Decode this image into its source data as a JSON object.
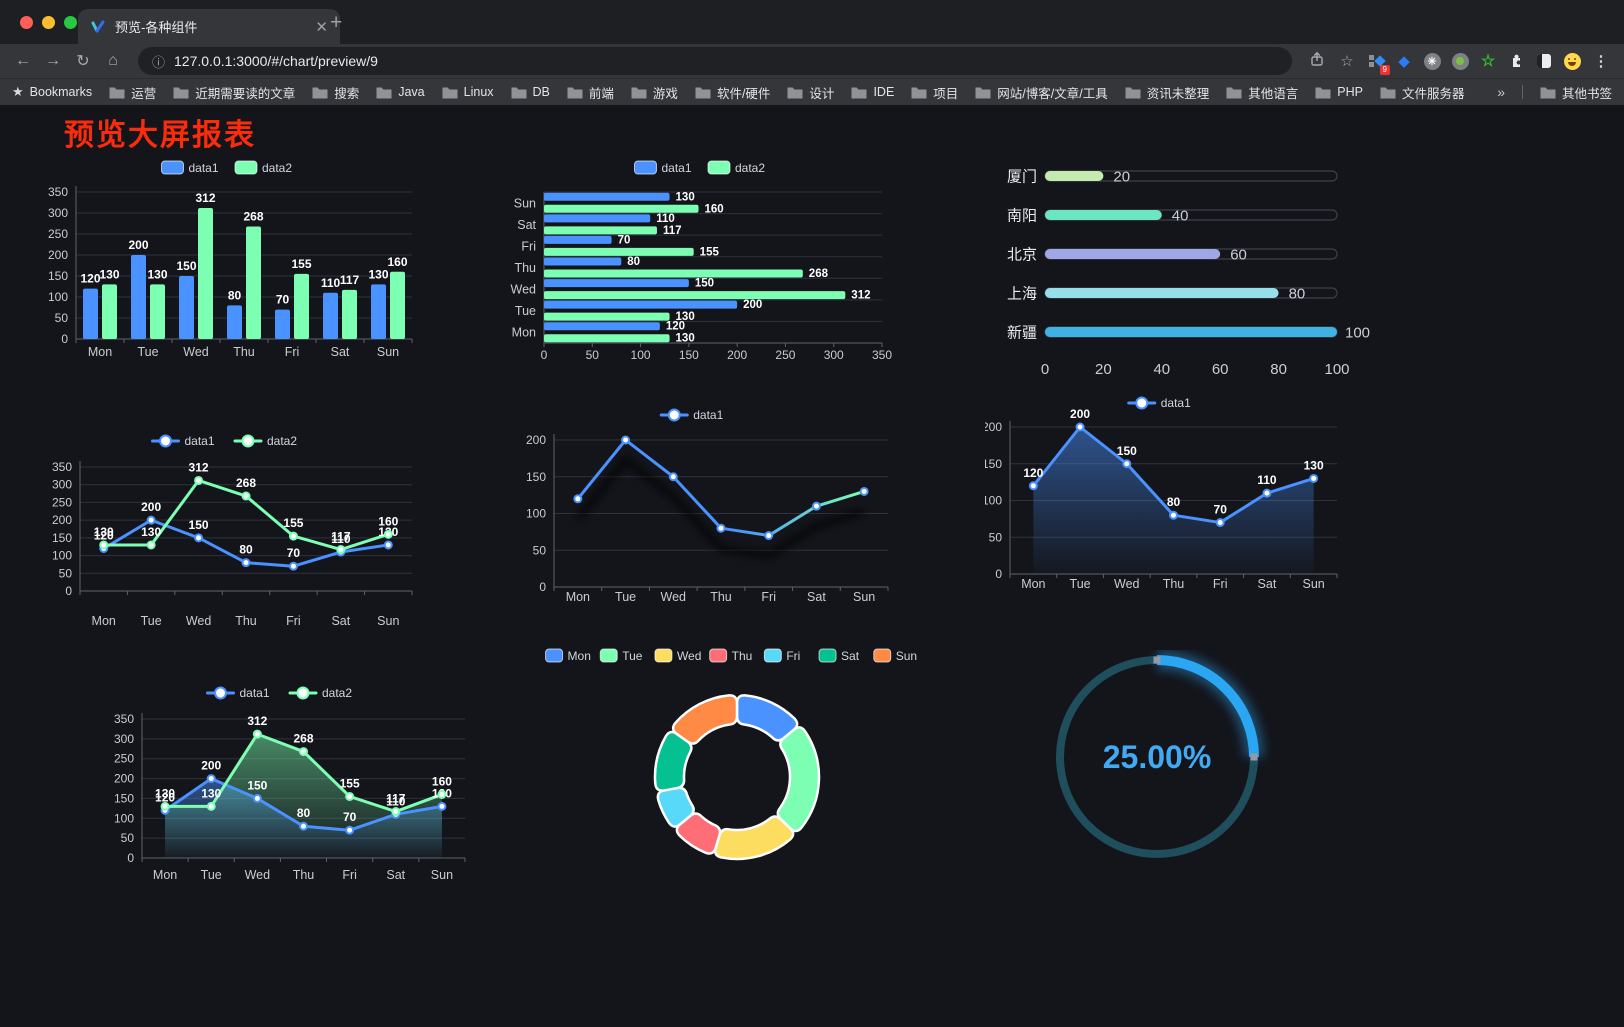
{
  "browser": {
    "tab_title": "预览-各种组件",
    "url": "127.0.0.1:3000/#/chart/preview/9",
    "extension_badge": "9",
    "bookmarks_label": "Bookmarks",
    "bookmarks": [
      "运营",
      "近期需要读的文章",
      "搜索",
      "Java",
      "Linux",
      "DB",
      "前端",
      "游戏",
      "软件/硬件",
      "设计",
      "IDE",
      "项目",
      "网站/博客/文章/工具",
      "资讯未整理",
      "其他语言",
      "PHP",
      "文件服务器"
    ],
    "bookmarks_overflow": "»",
    "other_bookmarks": "其他书签"
  },
  "page": {
    "title": "预览大屏报表",
    "title_color": "#fb2c0c"
  },
  "palette": {
    "blue": "#4992ff",
    "green": "#7cffb2",
    "grid": "#2e323c",
    "axis": "#5c626b",
    "text": "#c8ccd4",
    "gauge_blue": "#2ba6f3",
    "gauge_track": "#1f4e5c"
  },
  "chart_data": [
    {
      "id": "bar-grouped",
      "type": "bar",
      "legend_position": "top",
      "categories": [
        "Mon",
        "Tue",
        "Wed",
        "Thu",
        "Fri",
        "Sat",
        "Sun"
      ],
      "series": [
        {
          "name": "data1",
          "color": "#4992ff",
          "values": [
            120,
            200,
            150,
            80,
            70,
            110,
            130
          ]
        },
        {
          "name": "data2",
          "color": "#7cffb2",
          "values": [
            130,
            130,
            312,
            268,
            155,
            117,
            160
          ]
        }
      ],
      "ylim": [
        0,
        350
      ],
      "ytick": 50,
      "value_labels": true
    },
    {
      "id": "bar-horizontal",
      "type": "bar",
      "orientation": "horizontal",
      "legend_position": "top",
      "categories": [
        "Mon",
        "Tue",
        "Wed",
        "Thu",
        "Fri",
        "Sat",
        "Sun"
      ],
      "row_order_top_to_bottom": [
        "Sun",
        "Sat",
        "Fri",
        "Thu",
        "Wed",
        "Tue",
        "Mon"
      ],
      "series": [
        {
          "name": "data1",
          "color": "#4992ff",
          "values": [
            120,
            200,
            150,
            80,
            70,
            110,
            130
          ]
        },
        {
          "name": "data2",
          "color": "#7cffb2",
          "values": [
            130,
            130,
            312,
            268,
            155,
            117,
            160
          ]
        }
      ],
      "xlim": [
        0,
        350
      ],
      "xtick": 50,
      "value_labels": true
    },
    {
      "id": "progress",
      "type": "bar",
      "subtype": "progress",
      "max": 100,
      "rows": [
        {
          "label": "厦门",
          "value": 20,
          "color": "#c4ebad"
        },
        {
          "label": "南阳",
          "value": 40,
          "color": "#6be6c1"
        },
        {
          "label": "北京",
          "value": 60,
          "color": "#a0a7e6"
        },
        {
          "label": "上海",
          "value": 80,
          "color": "#96dee8"
        },
        {
          "label": "新疆",
          "value": 100,
          "color": "#3fb1e3"
        }
      ],
      "axis_ticks": [
        0,
        20,
        40,
        60,
        80,
        100
      ]
    },
    {
      "id": "line-basic",
      "type": "line",
      "legend_position": "top",
      "categories": [
        "Mon",
        "Tue",
        "Wed",
        "Thu",
        "Fri",
        "Sat",
        "Sun"
      ],
      "series": [
        {
          "name": "data1",
          "color": "#4992ff",
          "values": [
            120,
            200,
            150,
            80,
            70,
            110,
            130
          ]
        },
        {
          "name": "data2",
          "color": "#7cffb2",
          "values": [
            130,
            130,
            312,
            268,
            155,
            117,
            160
          ]
        }
      ],
      "ylim": [
        0,
        350
      ],
      "ytick": 50,
      "value_labels": true
    },
    {
      "id": "line-gradient",
      "type": "line",
      "legend_position": "top",
      "shadow": true,
      "categories": [
        "Mon",
        "Tue",
        "Wed",
        "Thu",
        "Fri",
        "Sat",
        "Sun"
      ],
      "series": [
        {
          "name": "data1",
          "color": "#4992ff",
          "gradient": [
            "#4992ff",
            "#7cffb2"
          ],
          "values": [
            120,
            200,
            150,
            80,
            70,
            110,
            130
          ]
        }
      ],
      "ylim": [
        0,
        200
      ],
      "ytick": 50,
      "value_labels": false
    },
    {
      "id": "line-area-single",
      "type": "area",
      "legend_position": "top",
      "categories": [
        "Mon",
        "Tue",
        "Wed",
        "Thu",
        "Fri",
        "Sat",
        "Sun"
      ],
      "series": [
        {
          "name": "data1",
          "color": "#4992ff",
          "area": true,
          "values": [
            120,
            200,
            150,
            80,
            70,
            110,
            130
          ]
        }
      ],
      "ylim": [
        0,
        200
      ],
      "ytick": 50,
      "value_labels": true
    },
    {
      "id": "line-area-double",
      "type": "area",
      "legend_position": "top",
      "categories": [
        "Mon",
        "Tue",
        "Wed",
        "Thu",
        "Fri",
        "Sat",
        "Sun"
      ],
      "series": [
        {
          "name": "data1",
          "color": "#4992ff",
          "area": true,
          "values": [
            120,
            200,
            150,
            80,
            70,
            110,
            130
          ]
        },
        {
          "name": "data2",
          "color": "#7cffb2",
          "area": true,
          "values": [
            130,
            130,
            312,
            268,
            155,
            117,
            160
          ]
        }
      ],
      "ylim": [
        0,
        350
      ],
      "ytick": 50,
      "value_labels": true
    },
    {
      "id": "donut",
      "type": "pie",
      "legend_position": "top",
      "items": [
        {
          "label": "Mon",
          "value": 120,
          "color": "#4992ff"
        },
        {
          "label": "Tue",
          "value": 200,
          "color": "#7cffb2"
        },
        {
          "label": "Wed",
          "value": 150,
          "color": "#fddd60"
        },
        {
          "label": "Thu",
          "value": 80,
          "color": "#ff6e76"
        },
        {
          "label": "Fri",
          "value": 70,
          "color": "#58d9f9"
        },
        {
          "label": "Sat",
          "value": 110,
          "color": "#05c091"
        },
        {
          "label": "Sun",
          "value": 130,
          "color": "#ff8a45"
        }
      ]
    },
    {
      "id": "gauge",
      "type": "gauge",
      "value": 25,
      "max": 100,
      "display": "25.00%",
      "color": "#2ba6f3",
      "track_color": "#1f4e5c"
    }
  ]
}
